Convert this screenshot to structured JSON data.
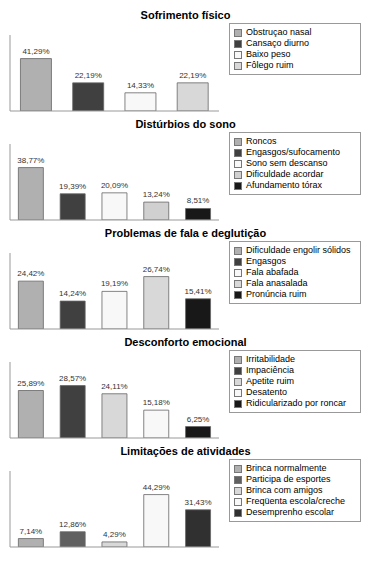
{
  "chart_data": [
    {
      "type": "bar",
      "title": "Sofrimento físico",
      "categories": [
        "Obstruçao nasal",
        "Cansaço diurno",
        "Baixo peso",
        "Fôlego ruim"
      ],
      "values": [
        41.29,
        22.19,
        14.33,
        22.19
      ],
      "value_labels": [
        "41,29%",
        "22,19%",
        "14,33%",
        "22,19%"
      ],
      "colors": [
        "#b0b0b0",
        "#404040",
        "#f8f8f8",
        "#d8d8d8"
      ],
      "ylim": [
        0,
        59.8705
      ],
      "data_labels": true,
      "tick_labels": false,
      "legend": "upper right"
    },
    {
      "type": "bar",
      "title": "Distúrbios do sono",
      "categories": [
        "Roncos",
        "Engasgos/sufocamento",
        "Sono sem descanso",
        "Dificuldade acordar",
        "Afundamento tórax"
      ],
      "values": [
        38.77,
        19.39,
        20.09,
        13.24,
        8.51
      ],
      "value_labels": [
        "38,77%",
        "19,39%",
        "20,09%",
        "13,24%",
        "8,51%"
      ],
      "colors": [
        "#b0b0b0",
        "#404040",
        "#f8f8f8",
        "#d0d0d0",
        "#181818"
      ],
      "ylim": [
        0,
        56.2165
      ],
      "data_labels": true,
      "tick_labels": false,
      "legend": "upper right"
    },
    {
      "type": "bar",
      "title": "Problemas de fala e deglutição",
      "categories": [
        "Dificuldade engolir sólidos",
        "Engasgos",
        "Fala abafada",
        "Fala anasalada",
        "Pronúncia ruim"
      ],
      "values": [
        24.42,
        14.24,
        19.19,
        26.74,
        15.41
      ],
      "value_labels": [
        "24,42%",
        "14,24%",
        "19,19%",
        "26,74%",
        "15,41%"
      ],
      "colors": [
        "#b0b0b0",
        "#404040",
        "#f8f8f8",
        "#d8d8d8",
        "#181818"
      ],
      "ylim": [
        0,
        38.773
      ],
      "data_labels": true,
      "tick_labels": false,
      "legend": "upper right"
    },
    {
      "type": "bar",
      "title": "Desconforto emocional",
      "categories": [
        "Irritabilidade",
        "Impaciência",
        "Apetite ruim",
        "Desatento",
        "Ridicularizado por roncar"
      ],
      "values": [
        25.89,
        28.57,
        24.11,
        15.18,
        6.25
      ],
      "value_labels": [
        "25,89%",
        "28,57%",
        "24,11%",
        "15,18%",
        "6,25%"
      ],
      "colors": [
        "#b0b0b0",
        "#404040",
        "#d8d8d8",
        "#f8f8f8",
        "#181818"
      ],
      "ylim": [
        0,
        41.4265
      ],
      "data_labels": true,
      "tick_labels": false,
      "legend": "upper right"
    },
    {
      "type": "bar",
      "title": "Limitações de atividades",
      "categories": [
        "Brinca normalmente",
        "Participa de esportes",
        "Brinca com amigos",
        "Freqüenta escola/creche",
        "Desemprenho escolar"
      ],
      "values": [
        7.14,
        12.86,
        4.29,
        44.29,
        31.43
      ],
      "value_labels": [
        "7,14%",
        "12,86%",
        "4,29%",
        "44,29%",
        "31,43%"
      ],
      "colors": [
        "#b0b0b0",
        "#606060",
        "#d8d8d8",
        "#f8f8f8",
        "#303030"
      ],
      "ylim": [
        0,
        64.2205
      ],
      "data_labels": true,
      "tick_labels": false,
      "legend": "upper right"
    }
  ]
}
